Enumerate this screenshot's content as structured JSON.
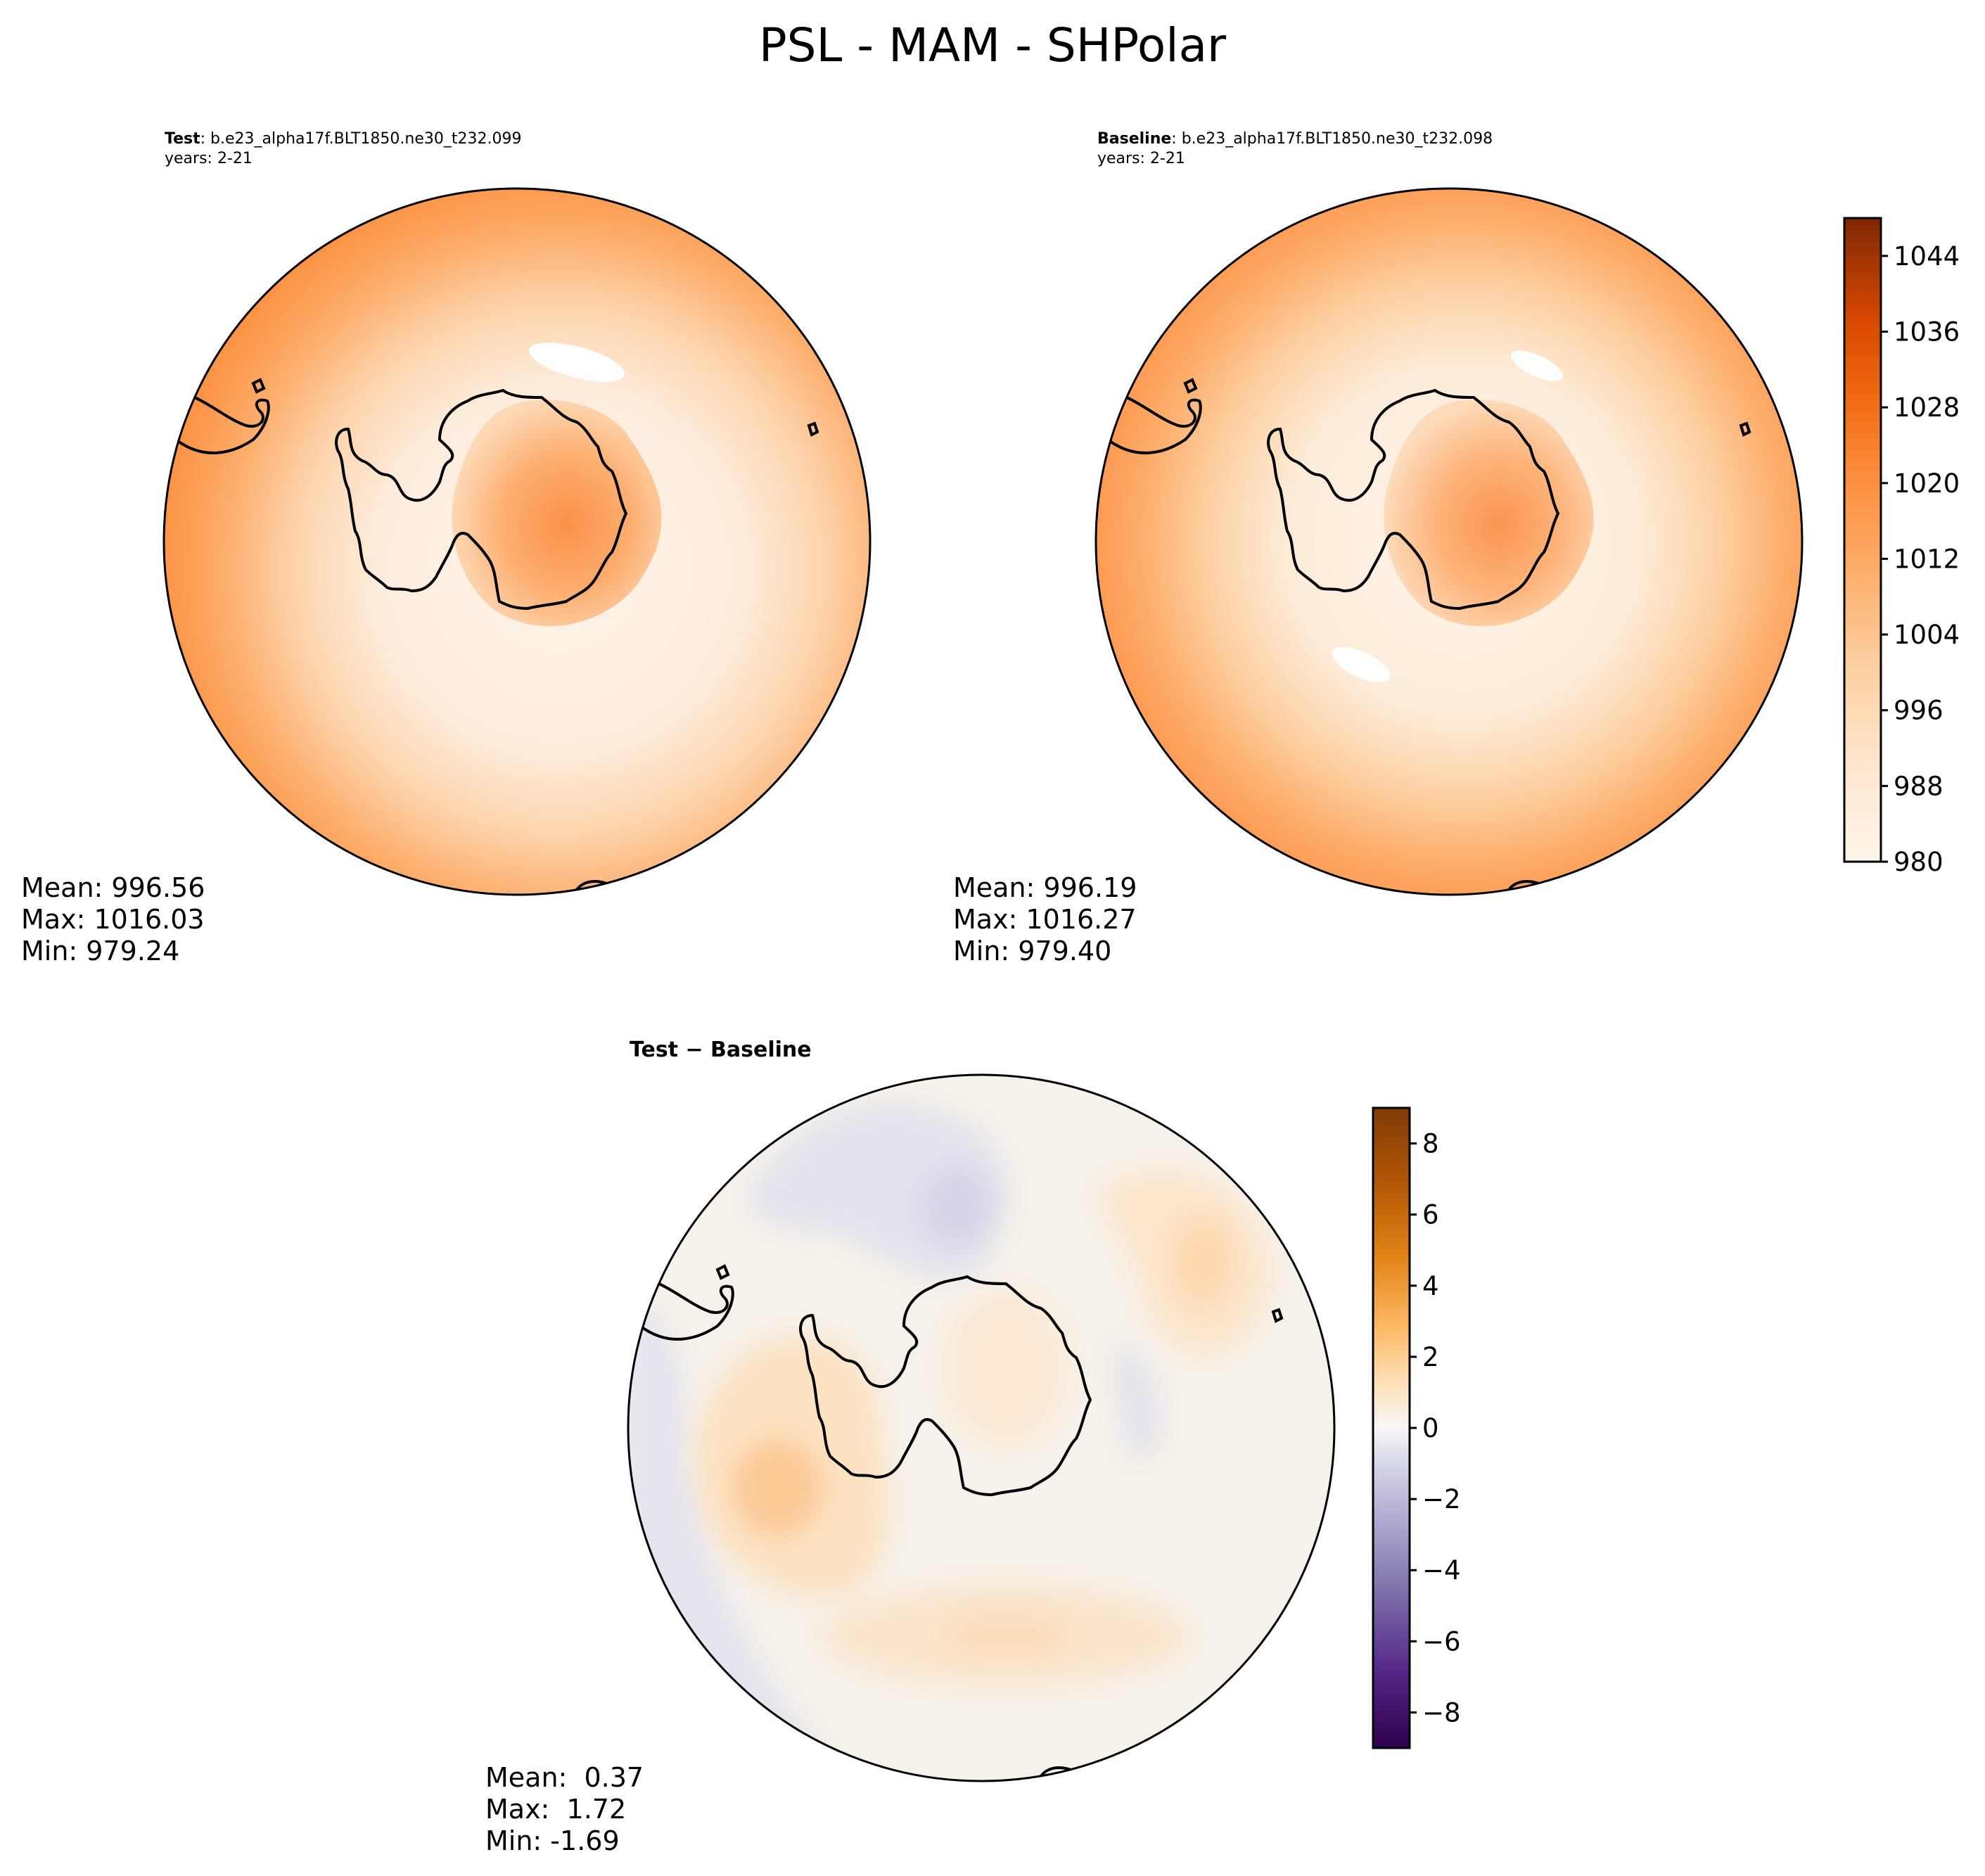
{
  "title": "PSL - MAM - SHPolar",
  "panels": {
    "test": {
      "label_bold": "Test",
      "label_rest": ": b.e23_alpha17f.BLT1850.ne30_t232.099",
      "years": "years: 2-21",
      "stats": {
        "mean": "Mean: 996.56",
        "max": "Max: 1016.03",
        "min": "Min: 979.24"
      }
    },
    "baseline": {
      "label_bold": "Baseline",
      "label_rest": ": b.e23_alpha17f.BLT1850.ne30_t232.098",
      "years": "years: 2-21",
      "stats": {
        "mean": "Mean: 996.19",
        "max": "Max: 1016.27",
        "min": "Min: 979.40"
      }
    },
    "diff": {
      "title": "Test − Baseline",
      "stats": {
        "mean": "Mean:  0.37",
        "max": "Max:  1.72",
        "min": "Min: -1.69"
      }
    }
  },
  "colorbars": {
    "main": {
      "ticks": [
        "1044",
        "1036",
        "1028",
        "1020",
        "1012",
        "1004",
        "996",
        "988",
        "980"
      ],
      "min": 980,
      "max": 1048,
      "colormap": "Oranges",
      "colors": [
        "#fff5eb",
        "#fee6ce",
        "#fdd0a2",
        "#fdae6b",
        "#fd8d3c",
        "#f16913",
        "#d94801",
        "#a63603",
        "#7f2704"
      ]
    },
    "diff": {
      "ticks": [
        "8",
        "6",
        "4",
        "2",
        "0",
        "−2",
        "−4",
        "−6",
        "−8"
      ],
      "min": -9,
      "max": 9,
      "colormap": "PuOr_r",
      "colors": [
        "#2d004b",
        "#542788",
        "#8073ac",
        "#b2abd2",
        "#d8daeb",
        "#f7f7f7",
        "#fee0b6",
        "#fdb863",
        "#e08214",
        "#b35806",
        "#7f3b08"
      ]
    }
  }
}
